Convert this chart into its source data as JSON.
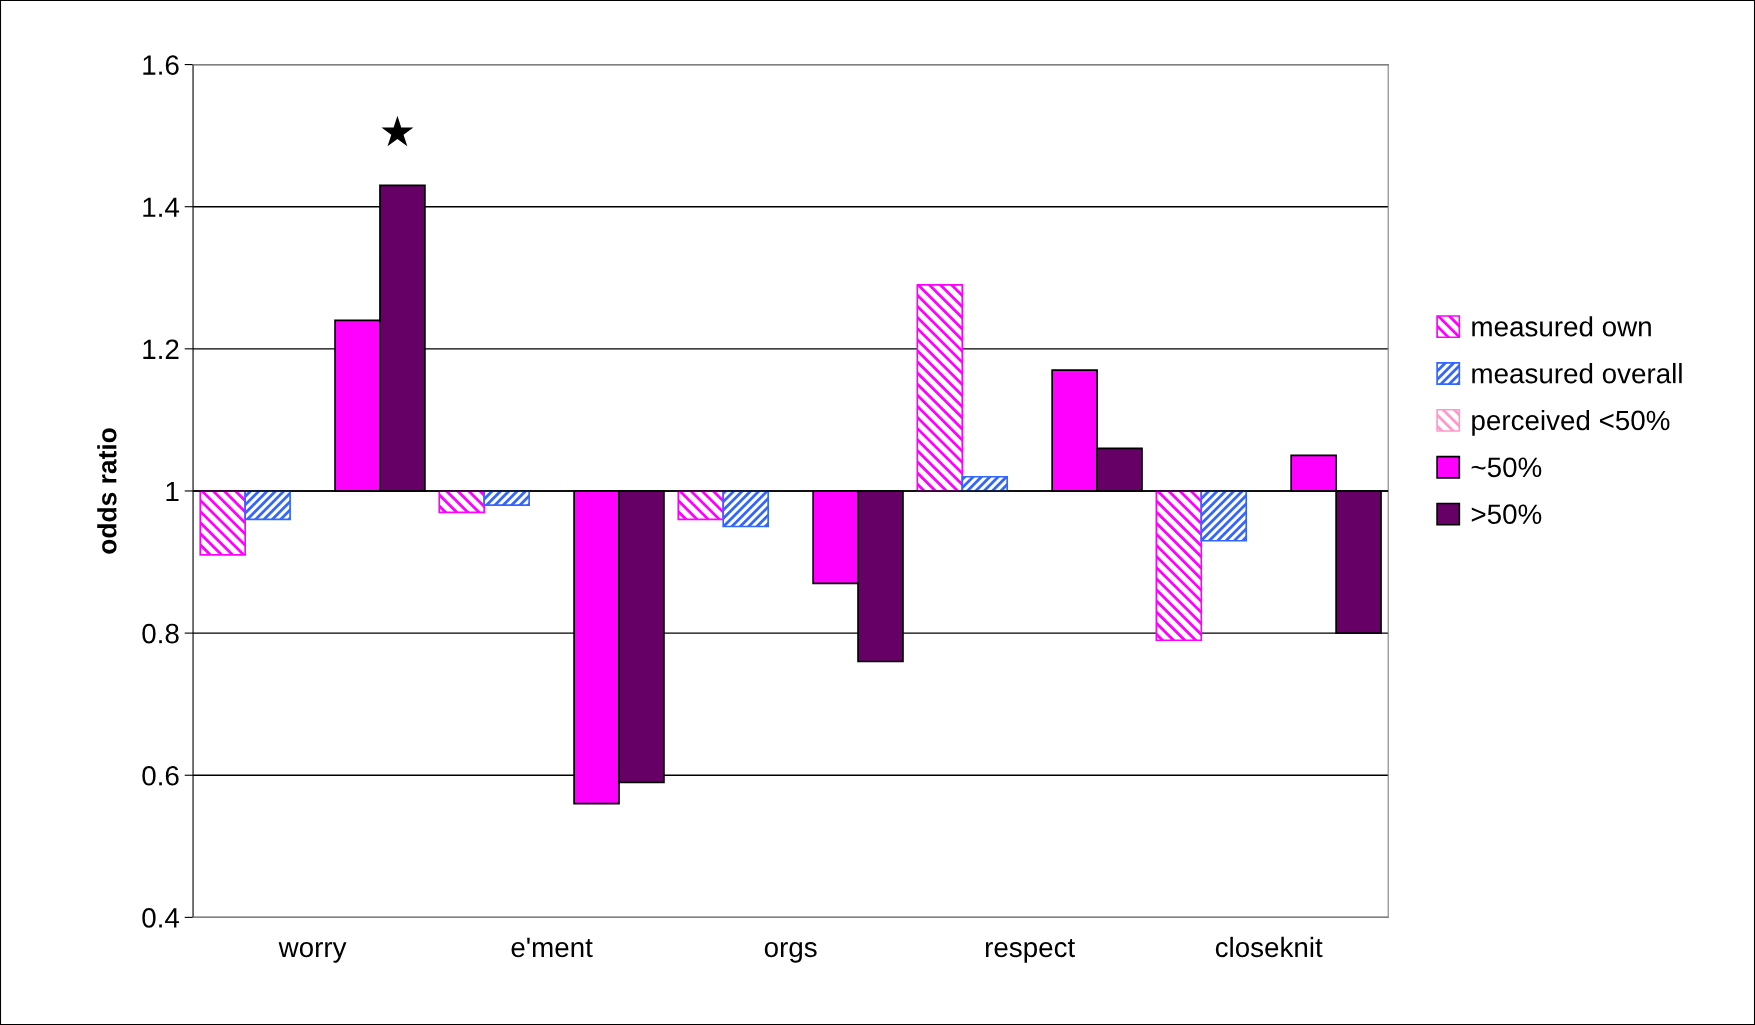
{
  "chart_data": {
    "type": "bar",
    "ylabel": "odds ratio",
    "categories": [
      "worry",
      "e'ment",
      "orgs",
      "respect",
      "closeknit"
    ],
    "series": [
      {
        "name": "measured own",
        "color": "#ff00ff",
        "base": [
          1,
          1,
          1,
          1,
          1
        ],
        "values": [
          -0.09,
          -0.03,
          -0.04,
          0.29,
          -0.21
        ]
      },
      {
        "name": "measured overall",
        "color": "#3366ff",
        "base": [
          1,
          1,
          1,
          1,
          1
        ],
        "values": [
          -0.04,
          -0.02,
          -0.05,
          0.02,
          -0.07
        ]
      },
      {
        "name": "perceived <50%",
        "color": "#ff99cc",
        "values": [
          null,
          null,
          null,
          null,
          null
        ]
      },
      {
        "name": "~50%",
        "color": "#ff00ff",
        "base": [
          1,
          1,
          1,
          1,
          1
        ],
        "values": [
          0.24,
          -0.44,
          -0.13,
          0.17,
          0.05
        ]
      },
      {
        "name": ">50%",
        "color": "#660066",
        "base": [
          1,
          1,
          1,
          1,
          1
        ],
        "values": [
          0.43,
          -0.41,
          -0.24,
          0.06,
          -0.2
        ]
      }
    ],
    "ylim": [
      0.4,
      1.6
    ],
    "yticks": [
      0.4,
      0.6,
      0.8,
      1,
      1.2,
      1.4,
      1.6
    ],
    "annotations": [
      "★"
    ],
    "grid": "y",
    "legend": "right"
  }
}
